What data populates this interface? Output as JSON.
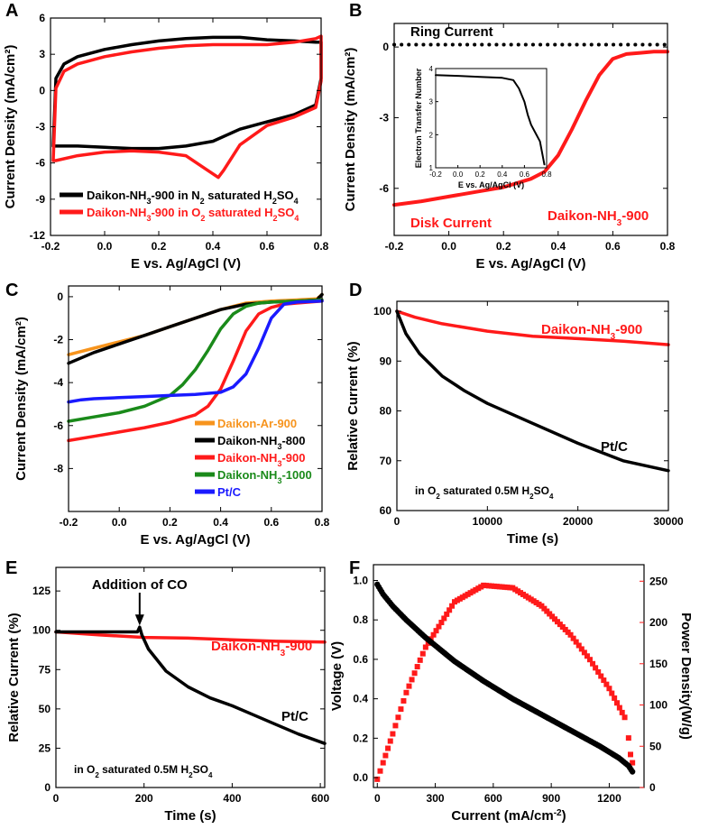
{
  "colors": {
    "black": "#000000",
    "red": "#ff1a1a",
    "orange": "#f7941d",
    "green": "#1a8a1a",
    "blue": "#1a1aff"
  },
  "chart_data": [
    {
      "id": "A",
      "panel_label": "A",
      "type": "line",
      "xlabel": "E vs. Ag/AgCl (V)",
      "ylabel": "Current Density (mA/cm²)",
      "xlim": [
        -0.2,
        0.8
      ],
      "ylim": [
        -12,
        6
      ],
      "xticks": [
        "-0.2",
        "0.0",
        "0.2",
        "0.4",
        "0.6",
        "0.8"
      ],
      "yticks": [
        "6",
        "3",
        "0",
        "-3",
        "-6",
        "-9",
        "-12"
      ],
      "legend": "bottom-left",
      "series": [
        {
          "name": "Daikon-NH3-900 in N2 saturated H2SO4",
          "label_main": "Daikon-NH",
          "label_sub1": "3",
          "label_mid": "-900 in N",
          "label_sub2": "2",
          "label_mid2": " saturated H",
          "label_sub3": "2",
          "label_mid3": "SO",
          "label_sub4": "4",
          "color": "black",
          "x": [
            -0.19,
            -0.18,
            -0.15,
            -0.1,
            0.0,
            0.1,
            0.2,
            0.3,
            0.4,
            0.5,
            0.6,
            0.7,
            0.78,
            0.8,
            0.8,
            0.78,
            0.7,
            0.6,
            0.5,
            0.4,
            0.3,
            0.2,
            0.1,
            0.0,
            -0.1,
            -0.18,
            -0.19
          ],
          "y": [
            -4.6,
            1.0,
            2.2,
            2.8,
            3.4,
            3.8,
            4.1,
            4.3,
            4.4,
            4.4,
            4.2,
            4.1,
            4.0,
            4.0,
            1.0,
            -1.2,
            -2.0,
            -2.6,
            -3.2,
            -4.2,
            -4.6,
            -4.8,
            -4.8,
            -4.7,
            -4.6,
            -4.6,
            -4.6
          ]
        },
        {
          "name": "Daikon-NH3-900 in O2 saturated H2SO4",
          "label_main": "Daikon-NH",
          "label_sub1": "3",
          "label_mid": "-900 in O",
          "label_sub2": "2",
          "label_mid2": " saturated H",
          "label_sub3": "2",
          "label_mid3": "SO",
          "label_sub4": "4",
          "color": "red",
          "x": [
            -0.19,
            -0.18,
            -0.15,
            -0.1,
            0.0,
            0.1,
            0.2,
            0.3,
            0.4,
            0.5,
            0.6,
            0.7,
            0.78,
            0.8,
            0.8,
            0.78,
            0.7,
            0.6,
            0.5,
            0.44,
            0.42,
            0.38,
            0.3,
            0.2,
            0.1,
            0.0,
            -0.1,
            -0.18,
            -0.19
          ],
          "y": [
            -5.8,
            0.2,
            1.6,
            2.2,
            2.8,
            3.2,
            3.5,
            3.7,
            3.8,
            3.8,
            3.8,
            4.0,
            4.3,
            4.5,
            0.8,
            -1.4,
            -2.2,
            -2.9,
            -4.5,
            -6.6,
            -7.2,
            -6.6,
            -5.4,
            -5.1,
            -5.0,
            -5.1,
            -5.4,
            -5.8,
            -5.8
          ]
        }
      ]
    },
    {
      "id": "B",
      "panel_label": "B",
      "type": "line",
      "xlabel": "E vs. Ag/AgCl (V)",
      "ylabel": "Current Density (mA/cm²)",
      "xlim": [
        -0.2,
        0.8
      ],
      "ylim": [
        -8,
        1
      ],
      "xticks": [
        "-0.2",
        "0.0",
        "0.2",
        "0.4",
        "0.6",
        "0.8"
      ],
      "yticks": [
        "0",
        "-3",
        "-6"
      ],
      "annotations": {
        "ring": "Ring Current",
        "disk": "Disk Current",
        "sample": "Daikon-NH",
        "sample_sub": "3",
        "sample_tail": "-900"
      },
      "series": [
        {
          "name": "Ring Current",
          "color": "black",
          "style": "dotted",
          "x": [
            -0.2,
            0.8
          ],
          "y": [
            0.1,
            0.1
          ]
        },
        {
          "name": "Disk Current",
          "color": "red",
          "x": [
            -0.2,
            -0.1,
            0.0,
            0.1,
            0.2,
            0.3,
            0.35,
            0.4,
            0.45,
            0.5,
            0.55,
            0.6,
            0.65,
            0.7,
            0.75,
            0.8
          ],
          "y": [
            -6.7,
            -6.55,
            -6.35,
            -6.15,
            -5.95,
            -5.6,
            -5.3,
            -4.6,
            -3.5,
            -2.3,
            -1.2,
            -0.5,
            -0.3,
            -0.25,
            -0.2,
            -0.2
          ]
        }
      ],
      "inset": {
        "xlabel": "E vs. Ag/AgCl (V)",
        "ylabel": "Electron Transfer Number",
        "xlim": [
          -0.2,
          0.8
        ],
        "ylim": [
          1,
          4
        ],
        "xticks": [
          "-0.2",
          "0.0",
          "0.2",
          "0.4",
          "0.6",
          "0.8"
        ],
        "yticks": [
          "4",
          "3",
          "2",
          "1"
        ],
        "series": [
          {
            "name": "Electron Transfer Number",
            "color": "black",
            "x": [
              -0.2,
              0.0,
              0.2,
              0.4,
              0.5,
              0.55,
              0.6,
              0.63,
              0.66,
              0.7,
              0.74,
              0.78
            ],
            "y": [
              3.8,
              3.78,
              3.75,
              3.72,
              3.65,
              3.4,
              3.0,
              2.6,
              2.3,
              2.05,
              1.8,
              1.1
            ]
          }
        ]
      }
    },
    {
      "id": "C",
      "panel_label": "C",
      "type": "line",
      "xlabel": "E vs. Ag/AgCl (V)",
      "ylabel": "Current Density (mA/cm²)",
      "xlim": [
        -0.2,
        0.8
      ],
      "ylim": [
        -10,
        0.5
      ],
      "xticks": [
        "-0.2",
        "0.0",
        "0.2",
        "0.4",
        "0.6",
        "0.8"
      ],
      "yticks": [
        "0",
        "-2",
        "-4",
        "-6",
        "-8"
      ],
      "legend": "bottom-right",
      "series": [
        {
          "name": "Daikon-Ar-900",
          "label_main": "Daikon-Ar-900",
          "label_sub1": "",
          "label_tail": "",
          "color": "orange",
          "x": [
            -0.2,
            -0.1,
            0.0,
            0.1,
            0.2,
            0.3,
            0.4,
            0.5,
            0.6,
            0.7,
            0.78,
            0.8
          ],
          "y": [
            -2.7,
            -2.4,
            -2.1,
            -1.8,
            -1.4,
            -1.0,
            -0.6,
            -0.3,
            -0.2,
            -0.15,
            -0.1,
            0.1
          ]
        },
        {
          "name": "Daikon-NH3-800",
          "label_main": "Daikon-NH",
          "label_sub1": "3",
          "label_tail": "-800",
          "color": "black",
          "x": [
            -0.2,
            -0.1,
            0.0,
            0.1,
            0.2,
            0.3,
            0.4,
            0.5,
            0.6,
            0.7,
            0.78,
            0.8
          ],
          "y": [
            -3.1,
            -2.6,
            -2.2,
            -1.8,
            -1.4,
            -1.0,
            -0.6,
            -0.35,
            -0.25,
            -0.2,
            -0.15,
            0.1
          ]
        },
        {
          "name": "Daikon-NH3-900",
          "label_main": "Daikon-NH",
          "label_sub1": "3",
          "label_tail": "-900",
          "color": "red",
          "x": [
            -0.2,
            -0.1,
            0.0,
            0.1,
            0.2,
            0.3,
            0.35,
            0.4,
            0.45,
            0.5,
            0.55,
            0.6,
            0.65,
            0.7,
            0.8
          ],
          "y": [
            -6.7,
            -6.5,
            -6.3,
            -6.1,
            -5.85,
            -5.5,
            -5.1,
            -4.3,
            -3.0,
            -1.6,
            -0.8,
            -0.5,
            -0.35,
            -0.3,
            -0.2
          ]
        },
        {
          "name": "Daikon-NH3-1000",
          "label_main": "Daikon-NH",
          "label_sub1": "3",
          "label_tail": "-1000",
          "color": "green",
          "x": [
            -0.2,
            -0.1,
            0.0,
            0.1,
            0.2,
            0.25,
            0.3,
            0.35,
            0.4,
            0.45,
            0.5,
            0.55,
            0.6,
            0.7,
            0.8
          ],
          "y": [
            -5.8,
            -5.6,
            -5.4,
            -5.1,
            -4.6,
            -4.1,
            -3.4,
            -2.5,
            -1.5,
            -0.8,
            -0.45,
            -0.3,
            -0.25,
            -0.2,
            -0.15
          ]
        },
        {
          "name": "Pt/C",
          "label_main": "Pt/C",
          "label_sub1": "",
          "label_tail": "",
          "color": "blue",
          "x": [
            -0.2,
            -0.15,
            -0.1,
            0.0,
            0.1,
            0.2,
            0.3,
            0.4,
            0.45,
            0.5,
            0.55,
            0.6,
            0.65,
            0.7,
            0.8
          ],
          "y": [
            -4.9,
            -4.8,
            -4.75,
            -4.7,
            -4.65,
            -4.6,
            -4.55,
            -4.45,
            -4.2,
            -3.6,
            -2.4,
            -1.0,
            -0.35,
            -0.25,
            -0.2
          ]
        }
      ]
    },
    {
      "id": "D",
      "panel_label": "D",
      "type": "line",
      "xlabel": "Time (s)",
      "ylabel": "Relative Current (%)",
      "xlim": [
        0,
        30000
      ],
      "ylim": [
        60,
        102
      ],
      "xticks": [
        "0",
        "10000",
        "20000",
        "30000"
      ],
      "yticks": [
        "100",
        "90",
        "80",
        "70",
        "60"
      ],
      "annotations": {
        "condition_pre": "in O",
        "condition_sub": "2",
        "condition_mid": " saturated 0.5M H",
        "condition_sub2": "2",
        "condition_mid2": "SO",
        "condition_sub3": "4",
        "sample": "Daikon-NH",
        "sample_sub": "3",
        "sample_tail": "-900",
        "ptc": "Pt/C"
      },
      "series": [
        {
          "name": "Daikon-NH3-900",
          "color": "red",
          "x": [
            0,
            2000,
            5000,
            10000,
            15000,
            20000,
            25000,
            30000
          ],
          "y": [
            100,
            98.8,
            97.5,
            96.0,
            95.0,
            94.5,
            94.0,
            93.3
          ]
        },
        {
          "name": "Pt/C",
          "color": "black",
          "x": [
            0,
            1000,
            2500,
            5000,
            7500,
            10000,
            15000,
            20000,
            25000,
            30000
          ],
          "y": [
            100,
            95.5,
            91.5,
            87.0,
            84.0,
            81.5,
            77.5,
            73.5,
            70.0,
            68.0
          ]
        }
      ]
    },
    {
      "id": "E",
      "panel_label": "E",
      "type": "line",
      "xlabel": "Time (s)",
      "ylabel": "Relative Current (%)",
      "xlim": [
        0,
        610
      ],
      "ylim": [
        0,
        140
      ],
      "xticks": [
        "0",
        "200",
        "400",
        "600"
      ],
      "yticks": [
        "125",
        "100",
        "75",
        "50",
        "25",
        "0"
      ],
      "annotations": {
        "addition": "Addition of CO",
        "condition_pre": "in O",
        "condition_sub": "2",
        "condition_mid": " saturated 0.5M H",
        "condition_sub2": "2",
        "condition_mid2": "SO",
        "condition_sub3": "4",
        "sample": "Daikon-NH",
        "sample_sub": "3",
        "sample_tail": "-900",
        "ptc": "Pt/C"
      },
      "series": [
        {
          "name": "Daikon-NH3-900",
          "color": "red",
          "x": [
            0,
            100,
            200,
            300,
            400,
            500,
            610
          ],
          "y": [
            99,
            97,
            95.5,
            95,
            94,
            93,
            92.5
          ]
        },
        {
          "name": "Pt/C",
          "color": "black",
          "x": [
            0,
            50,
            100,
            150,
            185,
            190,
            195,
            210,
            250,
            300,
            350,
            400,
            450,
            500,
            550,
            610
          ],
          "y": [
            99,
            99,
            99,
            99,
            99,
            102,
            97,
            88,
            74,
            64,
            57,
            52,
            46,
            40,
            34,
            28
          ]
        }
      ]
    },
    {
      "id": "F",
      "panel_label": "F",
      "type": "scatter",
      "xlabel": "Current (mA/cm",
      "xlabel_sup": "-2",
      "xlabel_tail": ")",
      "ylabel": "Voltage (V)",
      "y2label": "Power Density(W/g)",
      "xlim": [
        -20,
        1380
      ],
      "ylim": [
        -0.05,
        1.08
      ],
      "y2lim": [
        0,
        270
      ],
      "xticks": [
        "0",
        "300",
        "600",
        "900",
        "1200"
      ],
      "yticks": [
        "1.0",
        "0.8",
        "0.6",
        "0.4",
        "0.2",
        "0.0"
      ],
      "y2ticks": [
        "250",
        "200",
        "150",
        "100",
        "50",
        "0"
      ],
      "series": [
        {
          "name": "Voltage",
          "color": "black",
          "axis": "left",
          "x": [
            0,
            30,
            80,
            150,
            250,
            400,
            550,
            700,
            850,
            1000,
            1150,
            1250,
            1300,
            1320
          ],
          "y": [
            0.98,
            0.93,
            0.87,
            0.8,
            0.71,
            0.59,
            0.49,
            0.4,
            0.32,
            0.24,
            0.16,
            0.1,
            0.06,
            0.03
          ]
        },
        {
          "name": "Power Density",
          "color": "red",
          "axis": "right",
          "x": [
            0,
            30,
            80,
            150,
            250,
            400,
            550,
            700,
            850,
            1000,
            1100,
            1200,
            1280,
            1300,
            1310,
            1320
          ],
          "y": [
            10,
            30,
            65,
            115,
            170,
            225,
            245,
            242,
            220,
            185,
            155,
            120,
            85,
            60,
            40,
            30
          ]
        }
      ]
    }
  ]
}
